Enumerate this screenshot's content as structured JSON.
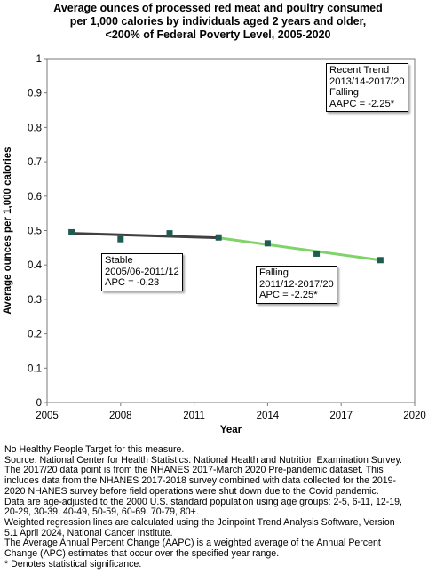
{
  "chart_data": {
    "type": "line",
    "title_lines": [
      "Average ounces of processed red meat and poultry consumed",
      "per 1,000 calories by individuals aged 2 years and older,",
      "<200% of Federal Poverty Level,  2005-2020"
    ],
    "xlabel": "Year",
    "ylabel": "Average ounces per 1,000 calories",
    "xlim": [
      2005,
      2020
    ],
    "ylim": [
      0,
      1
    ],
    "x_ticks": [
      2005,
      2008,
      2011,
      2014,
      2017,
      2020
    ],
    "y_ticks": [
      0,
      0.1,
      0.2,
      0.3,
      0.4,
      0.5,
      0.6,
      0.7,
      0.8,
      0.9,
      1
    ],
    "grid": false,
    "series": [
      {
        "x": [
          2006,
          2008,
          2010,
          2012,
          2014,
          2016,
          2018.6
        ],
        "values": [
          0.495,
          0.475,
          0.492,
          0.48,
          0.463,
          0.433,
          0.414
        ],
        "marker_color": "#1e5c52"
      }
    ],
    "trend_segments": [
      {
        "x": [
          2006,
          2012
        ],
        "y": [
          0.492,
          0.479
        ],
        "color": "#404040"
      },
      {
        "x": [
          2012,
          2018.6
        ],
        "y": [
          0.479,
          0.414
        ],
        "color": "#7fd36a"
      }
    ],
    "annotations": [
      {
        "id": "recent-trend",
        "lines": [
          "Recent Trend",
          "2013/14-2017/20",
          "Falling",
          "AAPC = -2.25*"
        ]
      },
      {
        "id": "stable",
        "lines": [
          "Stable",
          "2005/06-2011/12",
          "APC = -0.23"
        ]
      },
      {
        "id": "falling",
        "lines": [
          "Falling",
          "2011/12-2017/20",
          "APC = -2.25*"
        ]
      }
    ]
  },
  "notes": [
    "No Healthy People Target for this measure.",
    "Source: National Center for Health Statistics. National Health and Nutrition Examination Survey.",
    "The 2017/20 data point is from the NHANES 2017-March 2020 Pre-pandemic dataset. This",
    "includes data from the NHANES 2017-2018 survey combined with data collected for the 2019-",
    "2020 NHANES survey before field operations were shut down due to the Covid pandemic.",
    "Data are age-adjusted to the 2000 U.S. standard population using age groups: 2-5, 6-11, 12-19,",
    "20-29, 30-39, 40-49, 50-59, 60-69, 70-79, 80+.",
    "Weighted regression lines are calculated using the Joinpoint Trend Analysis Software, Version",
    "5.1 April 2024, National Cancer Institute.",
    "The Average Annual Percent Change (AAPC) is a weighted average of the Annual Percent",
    "Change (APC) estimates that occur over the specified year range.",
    "* Denotes statistical significance."
  ]
}
